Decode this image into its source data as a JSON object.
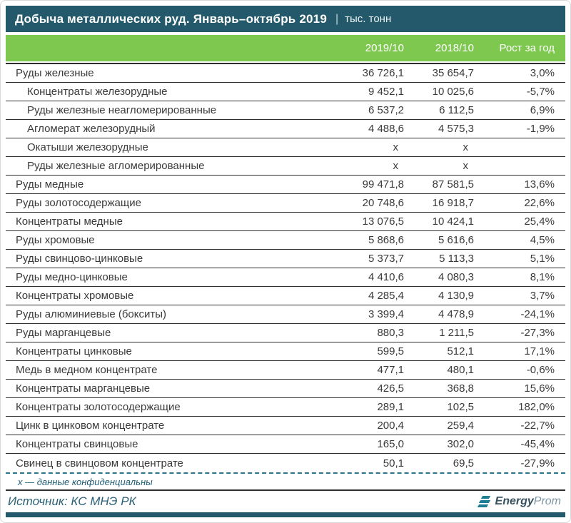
{
  "header": {
    "title": "Добыча металлических руд. Январь–октябрь 2019",
    "divider": "|",
    "unit": "тыс. тонн"
  },
  "chart_data": {
    "type": "table",
    "title": "Добыча металлических руд. Январь–октябрь 2019",
    "unit": "тыс. тонн",
    "columns": [
      "2019/10",
      "2018/10",
      "Рост за год"
    ],
    "rows": [
      {
        "name": "Руды железные",
        "indent": false,
        "values": [
          "36 726,1",
          "35 654,7",
          "3,0%"
        ]
      },
      {
        "name": "Концентраты железорудные",
        "indent": true,
        "values": [
          "9 452,1",
          "10 025,6",
          "-5,7%"
        ]
      },
      {
        "name": "Руды железные неагломерированные",
        "indent": true,
        "values": [
          "6 537,2",
          "6 112,5",
          "6,9%"
        ]
      },
      {
        "name": "Агломерат железорудный",
        "indent": true,
        "values": [
          "4 488,6",
          "4 575,3",
          "-1,9%"
        ]
      },
      {
        "name": "Окатыши железорудные",
        "indent": true,
        "values": [
          "х",
          "х",
          ""
        ]
      },
      {
        "name": "Руды железные агломерированные",
        "indent": true,
        "values": [
          "х",
          "х",
          ""
        ]
      },
      {
        "name": "Руды медные",
        "indent": false,
        "values": [
          "99 471,8",
          "87 581,5",
          "13,6%"
        ]
      },
      {
        "name": "Руды золотосодержащие",
        "indent": false,
        "values": [
          "20 748,6",
          "16 918,7",
          "22,6%"
        ]
      },
      {
        "name": "Концентраты медные",
        "indent": false,
        "values": [
          "13 076,5",
          "10 424,1",
          "25,4%"
        ]
      },
      {
        "name": "Руды хромовые",
        "indent": false,
        "values": [
          "5 868,6",
          "5 616,6",
          "4,5%"
        ]
      },
      {
        "name": "Руды свинцово-цинковые",
        "indent": false,
        "values": [
          "5 373,7",
          "5 113,3",
          "5,1%"
        ]
      },
      {
        "name": "Руды медно-цинковые",
        "indent": false,
        "values": [
          "4 410,6",
          "4 080,3",
          "8,1%"
        ]
      },
      {
        "name": "Концентраты хромовые",
        "indent": false,
        "values": [
          "4 285,4",
          "4 130,9",
          "3,7%"
        ]
      },
      {
        "name": "Руды алюминиевые (бокситы)",
        "indent": false,
        "values": [
          "3 399,4",
          "4 478,9",
          "-24,1%"
        ]
      },
      {
        "name": "Руды марганцевые",
        "indent": false,
        "values": [
          "880,3",
          "1 211,5",
          "-27,3%"
        ]
      },
      {
        "name": "Концентраты цинковые",
        "indent": false,
        "values": [
          "599,5",
          "512,1",
          "17,1%"
        ]
      },
      {
        "name": "Медь в медном концентрате",
        "indent": false,
        "values": [
          "477,1",
          "480,1",
          "-0,6%"
        ]
      },
      {
        "name": "Концентраты марганцевые",
        "indent": false,
        "values": [
          "426,5",
          "368,8",
          "15,6%"
        ]
      },
      {
        "name": "Концентраты золотосодержащие",
        "indent": false,
        "values": [
          "289,1",
          "102,5",
          "182,0%"
        ]
      },
      {
        "name": "Цинк в цинковом концентрате",
        "indent": false,
        "values": [
          "200,4",
          "259,4",
          "-22,7%"
        ]
      },
      {
        "name": "Концентраты свинцовые",
        "indent": false,
        "values": [
          "165,0",
          "302,0",
          "-45,4%"
        ]
      },
      {
        "name": "Свинец в свинцовом концентрате",
        "indent": false,
        "values": [
          "50,1",
          "69,5",
          "-27,9%"
        ]
      }
    ]
  },
  "footnote": {
    "text": "х — данные конфиденциальны"
  },
  "source": {
    "text": "Источник: КС МНЭ РК"
  },
  "logo": {
    "energy": "Energy",
    "prom": "Prom"
  },
  "colors": {
    "teal_bar": "#23596a",
    "green_header": "#7ec850",
    "row_border": "#2e2e2e",
    "footnote_text": "#215f78",
    "logo_icon": "#1e7d92"
  }
}
